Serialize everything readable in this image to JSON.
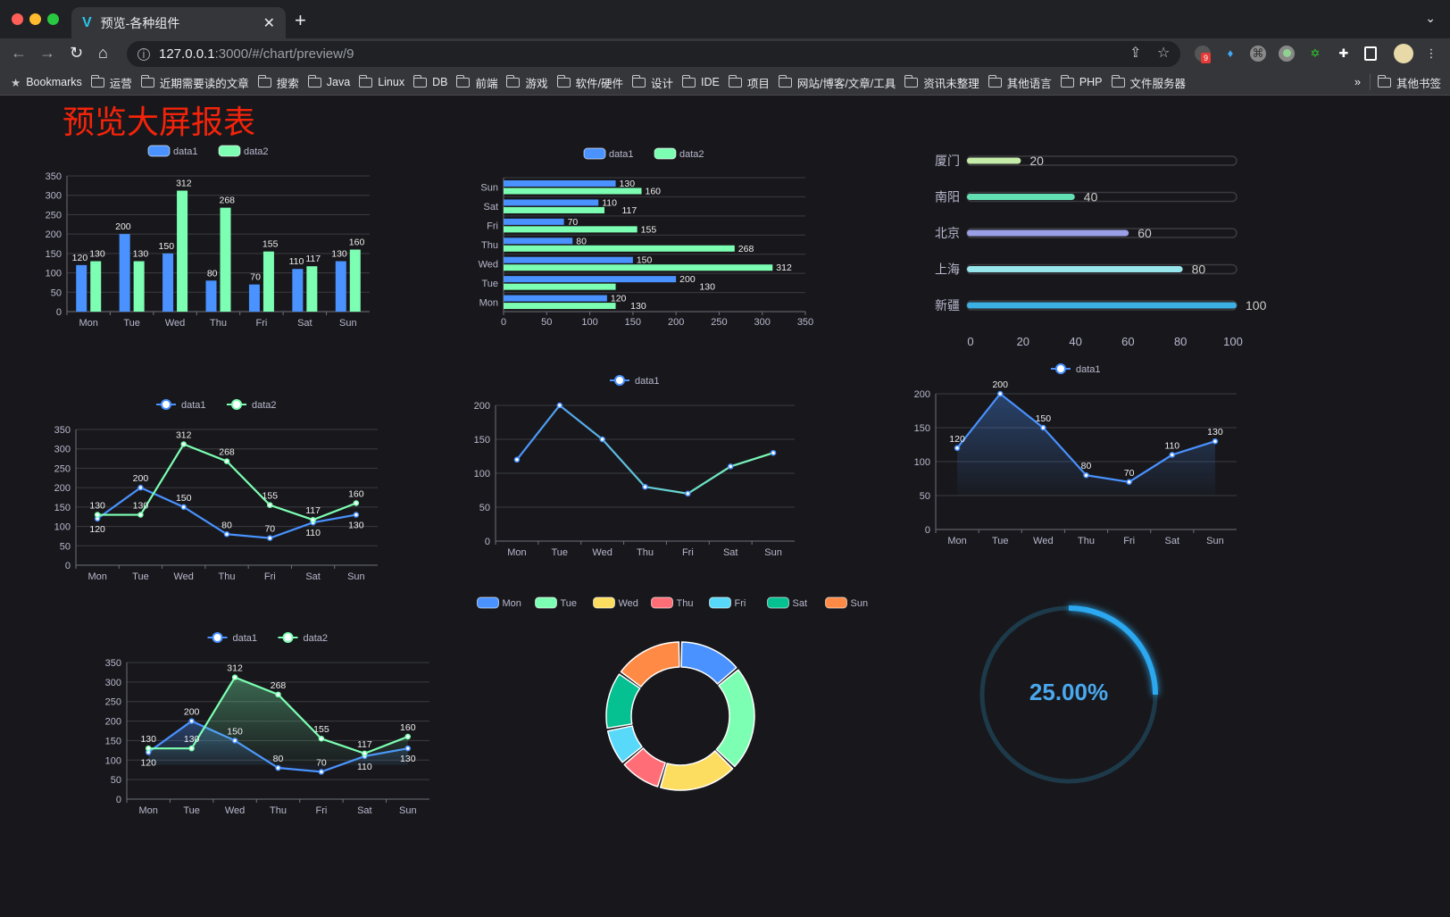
{
  "browser": {
    "tab_title": "预览-各种组件",
    "tab_icon": "vue-logo-icon",
    "url_host": "127.0.0.1",
    "url_path": ":3000/#/chart/preview/9",
    "extension_badge": "9",
    "bookmarks_label": "Bookmarks",
    "bookmarks": [
      "运营",
      "近期需要读的文章",
      "搜索",
      "Java",
      "Linux",
      "DB",
      "前端",
      "游戏",
      "软件/硬件",
      "设计",
      "IDE",
      "项目",
      "网站/博客/文章/工具",
      "资讯未整理",
      "其他语言",
      "PHP",
      "文件服务器"
    ],
    "more": "»",
    "other_bookmarks": "其他书签"
  },
  "page": {
    "title": "预览大屏报表",
    "title_color": "#f5230a",
    "background": "#18181c"
  },
  "colors": {
    "data1": "#4992ff",
    "data2": "#7cffb2"
  },
  "chart_data": [
    {
      "type": "bar",
      "orientation": "vertical",
      "legend": [
        "data1",
        "data2"
      ],
      "categories": [
        "Mon",
        "Tue",
        "Wed",
        "Thu",
        "Fri",
        "Sat",
        "Sun"
      ],
      "series": [
        {
          "name": "data1",
          "values": [
            120,
            200,
            150,
            80,
            70,
            110,
            130
          ]
        },
        {
          "name": "data2",
          "values": [
            130,
            130,
            312,
            268,
            155,
            117,
            160
          ]
        }
      ],
      "ylim": [
        0,
        350
      ],
      "yticks": [
        0,
        50,
        100,
        150,
        200,
        250,
        300,
        350
      ],
      "grid": true,
      "legend_position": "top"
    },
    {
      "type": "bar",
      "orientation": "horizontal",
      "legend": [
        "data1",
        "data2"
      ],
      "categories": [
        "Mon",
        "Tue",
        "Wed",
        "Thu",
        "Fri",
        "Sat",
        "Sun"
      ],
      "series": [
        {
          "name": "data1",
          "values": [
            120,
            200,
            150,
            80,
            70,
            110,
            130
          ]
        },
        {
          "name": "data2",
          "values": [
            130,
            130,
            312,
            268,
            155,
            117,
            160
          ]
        }
      ],
      "xlim": [
        0,
        350
      ],
      "xticks": [
        0,
        50,
        100,
        150,
        200,
        250,
        300,
        350
      ],
      "grid": true,
      "legend_position": "top"
    },
    {
      "type": "bar",
      "orientation": "progress",
      "categories": [
        "厦门",
        "南阳",
        "北京",
        "上海",
        "新疆"
      ],
      "values": [
        20,
        40,
        60,
        80,
        100
      ],
      "colors": [
        "#c5eca8",
        "#63e0b3",
        "#9a9fe6",
        "#96e6ec",
        "#3cb0e3"
      ],
      "xlim": [
        0,
        100
      ],
      "xticks": [
        0,
        20,
        40,
        60,
        80,
        100
      ]
    },
    {
      "type": "line",
      "legend": [
        "data1",
        "data2"
      ],
      "categories": [
        "Mon",
        "Tue",
        "Wed",
        "Thu",
        "Fri",
        "Sat",
        "Sun"
      ],
      "series": [
        {
          "name": "data1",
          "values": [
            120,
            200,
            150,
            80,
            70,
            110,
            130
          ]
        },
        {
          "name": "data2",
          "values": [
            130,
            130,
            312,
            268,
            155,
            117,
            160
          ]
        }
      ],
      "ylim": [
        0,
        350
      ],
      "yticks": [
        0,
        50,
        100,
        150,
        200,
        250,
        300,
        350
      ],
      "grid": true,
      "legend_position": "top"
    },
    {
      "type": "line",
      "legend": [
        "data1"
      ],
      "categories": [
        "Mon",
        "Tue",
        "Wed",
        "Thu",
        "Fri",
        "Sat",
        "Sun"
      ],
      "series": [
        {
          "name": "data1",
          "values": [
            120,
            200,
            150,
            80,
            70,
            110,
            130
          ]
        }
      ],
      "ylim": [
        0,
        200
      ],
      "yticks": [
        0,
        50,
        100,
        150,
        200
      ],
      "grid": true,
      "legend_position": "top",
      "labels": false,
      "gradient_colors": [
        "#4992ff",
        "#7cffb2"
      ]
    },
    {
      "type": "area",
      "legend": [
        "data1"
      ],
      "categories": [
        "Mon",
        "Tue",
        "Wed",
        "Thu",
        "Fri",
        "Sat",
        "Sun"
      ],
      "series": [
        {
          "name": "data1",
          "values": [
            120,
            200,
            150,
            80,
            70,
            110,
            130
          ]
        }
      ],
      "ylim": [
        0,
        200
      ],
      "yticks": [
        0,
        50,
        100,
        150,
        200
      ],
      "grid": true,
      "legend_position": "top"
    },
    {
      "type": "area",
      "legend": [
        "data1",
        "data2"
      ],
      "categories": [
        "Mon",
        "Tue",
        "Wed",
        "Thu",
        "Fri",
        "Sat",
        "Sun"
      ],
      "series": [
        {
          "name": "data1",
          "values": [
            120,
            200,
            150,
            80,
            70,
            110,
            130
          ]
        },
        {
          "name": "data2",
          "values": [
            130,
            130,
            312,
            268,
            155,
            117,
            160
          ]
        }
      ],
      "ylim": [
        0,
        350
      ],
      "yticks": [
        0,
        50,
        100,
        150,
        200,
        250,
        300,
        350
      ],
      "grid": true,
      "legend_position": "top"
    },
    {
      "type": "pie",
      "donut": true,
      "legend_position": "top",
      "categories": [
        "Mon",
        "Tue",
        "Wed",
        "Thu",
        "Fri",
        "Sat",
        "Sun"
      ],
      "values": [
        120,
        200,
        150,
        80,
        70,
        110,
        130
      ],
      "colors": [
        "#4992ff",
        "#7cffb2",
        "#fddd60",
        "#ff6e76",
        "#58d9f9",
        "#05c091",
        "#ff8a45"
      ]
    },
    {
      "type": "gauge",
      "value": 25,
      "label": "25.00%",
      "color": "#2ba8f0",
      "track_color": "#1d3a4a"
    }
  ]
}
